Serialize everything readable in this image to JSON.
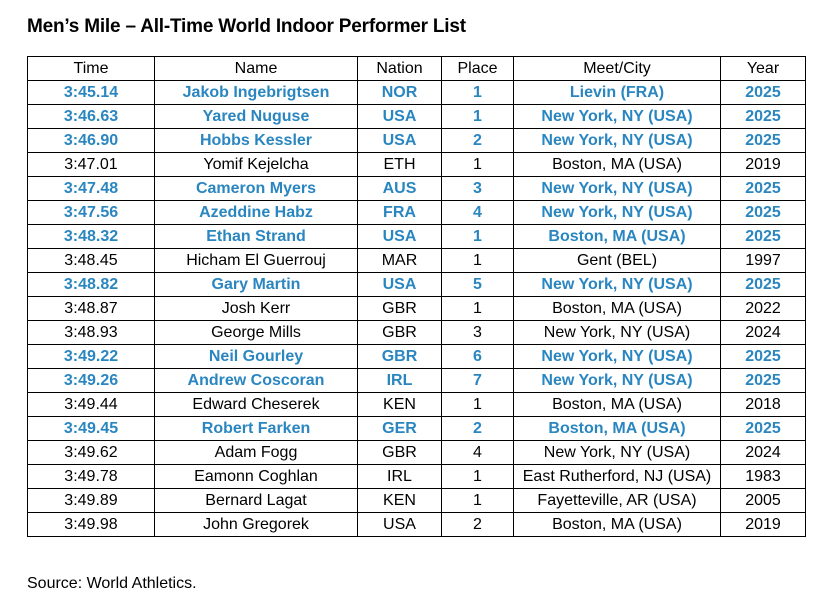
{
  "title": "Men’s Mile – All-Time World Indoor Performer List",
  "colors": {
    "highlight": "#2a86c0",
    "text": "#000000",
    "border": "#000000"
  },
  "table": {
    "headers": {
      "time": "Time",
      "name": "Name",
      "nation": "Nation",
      "place": "Place",
      "meet": "Meet/City",
      "year": "Year"
    },
    "rows": [
      {
        "time": "3:45.14",
        "name": "Jakob Ingebrigtsen",
        "nation": "NOR",
        "place": "1",
        "meet": "Lievin (FRA)",
        "year": "2025",
        "highlight": true
      },
      {
        "time": "3:46.63",
        "name": "Yared Nuguse",
        "nation": "USA",
        "place": "1",
        "meet": "New York, NY (USA)",
        "year": "2025",
        "highlight": true
      },
      {
        "time": "3:46.90",
        "name": "Hobbs Kessler",
        "nation": "USA",
        "place": "2",
        "meet": "New York, NY (USA)",
        "year": "2025",
        "highlight": true
      },
      {
        "time": "3:47.01",
        "name": "Yomif Kejelcha",
        "nation": "ETH",
        "place": "1",
        "meet": "Boston, MA (USA)",
        "year": "2019",
        "highlight": false
      },
      {
        "time": "3:47.48",
        "name": "Cameron Myers",
        "nation": "AUS",
        "place": "3",
        "meet": "New York, NY (USA)",
        "year": "2025",
        "highlight": true
      },
      {
        "time": "3:47.56",
        "name": "Azeddine Habz",
        "nation": "FRA",
        "place": "4",
        "meet": "New York, NY (USA)",
        "year": "2025",
        "highlight": true
      },
      {
        "time": "3:48.32",
        "name": "Ethan Strand",
        "nation": "USA",
        "place": "1",
        "meet": "Boston, MA (USA)",
        "year": "2025",
        "highlight": true
      },
      {
        "time": "3:48.45",
        "name": "Hicham El Guerrouj",
        "nation": "MAR",
        "place": "1",
        "meet": "Gent (BEL)",
        "year": "1997",
        "highlight": false
      },
      {
        "time": "3:48.82",
        "name": "Gary Martin",
        "nation": "USA",
        "place": "5",
        "meet": "New York, NY (USA)",
        "year": "2025",
        "highlight": true
      },
      {
        "time": "3:48.87",
        "name": "Josh Kerr",
        "nation": "GBR",
        "place": "1",
        "meet": "Boston, MA (USA)",
        "year": "2022",
        "highlight": false
      },
      {
        "time": "3:48.93",
        "name": "George Mills",
        "nation": "GBR",
        "place": "3",
        "meet": "New York, NY (USA)",
        "year": "2024",
        "highlight": false
      },
      {
        "time": "3:49.22",
        "name": "Neil Gourley",
        "nation": "GBR",
        "place": "6",
        "meet": "New York, NY (USA)",
        "year": "2025",
        "highlight": true
      },
      {
        "time": "3:49.26",
        "name": "Andrew Coscoran",
        "nation": "IRL",
        "place": "7",
        "meet": "New York, NY (USA)",
        "year": "2025",
        "highlight": true
      },
      {
        "time": "3:49.44",
        "name": "Edward Cheserek",
        "nation": "KEN",
        "place": "1",
        "meet": "Boston, MA (USA)",
        "year": "2018",
        "highlight": false
      },
      {
        "time": "3:49.45",
        "name": "Robert Farken",
        "nation": "GER",
        "place": "2",
        "meet": "Boston, MA (USA)",
        "year": "2025",
        "highlight": true
      },
      {
        "time": "3:49.62",
        "name": "Adam Fogg",
        "nation": "GBR",
        "place": "4",
        "meet": "New York, NY (USA)",
        "year": "2024",
        "highlight": false
      },
      {
        "time": "3:49.78",
        "name": "Eamonn Coghlan",
        "nation": "IRL",
        "place": "1",
        "meet": "East Rutherford, NJ (USA)",
        "year": "1983",
        "highlight": false
      },
      {
        "time": "3:49.89",
        "name": "Bernard Lagat",
        "nation": "KEN",
        "place": "1",
        "meet": "Fayetteville, AR (USA)",
        "year": "2005",
        "highlight": false
      },
      {
        "time": "3:49.98",
        "name": "John Gregorek",
        "nation": "USA",
        "place": "2",
        "meet": "Boston, MA (USA)",
        "year": "2019",
        "highlight": false
      }
    ]
  },
  "source": "Source: World Athletics."
}
